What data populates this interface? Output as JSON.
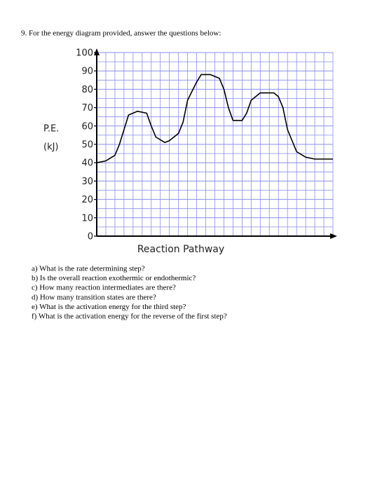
{
  "question": "9.  For the energy diagram provided, answer the questions below:",
  "chart_data": {
    "type": "line",
    "ylabel": [
      "P.E.",
      "(kJ)"
    ],
    "xlabel": "Reaction Pathway",
    "color": "#000000",
    "grid": true,
    "grid_color": "#8a8ef0",
    "ylim": [
      0,
      100
    ],
    "yticks": [
      0,
      10,
      20,
      30,
      40,
      50,
      60,
      70,
      80,
      90,
      100
    ],
    "xlim": [
      0,
      26
    ],
    "x": [
      0,
      1,
      2,
      2.5,
      3,
      3.5,
      4.5,
      5.5,
      6,
      6.5,
      7.5,
      8,
      9,
      9.5,
      10,
      11,
      11.5,
      12.5,
      13.5,
      14,
      14.5,
      15,
      16,
      16.5,
      17,
      18,
      19.5,
      20,
      20.5,
      21,
      22,
      23,
      24,
      26
    ],
    "series": [
      {
        "values": [
          40,
          41,
          44,
          50,
          58,
          66,
          68,
          67,
          60,
          54,
          51,
          52,
          56,
          62,
          74,
          84,
          88,
          88,
          86,
          80,
          70,
          63,
          63,
          67,
          74,
          78,
          78,
          76,
          70,
          58,
          46,
          43,
          42,
          42
        ]
      }
    ]
  },
  "subquestions": [
    "a) What is the rate determining step?",
    "b) Is the overall reaction exothermic or endothermic?",
    "c) How many reaction intermediates are there?",
    "d) How many transition states are there?",
    "e) What is the activation energy for the third step?",
    "f) What is the activation energy for the reverse of the first step?"
  ]
}
